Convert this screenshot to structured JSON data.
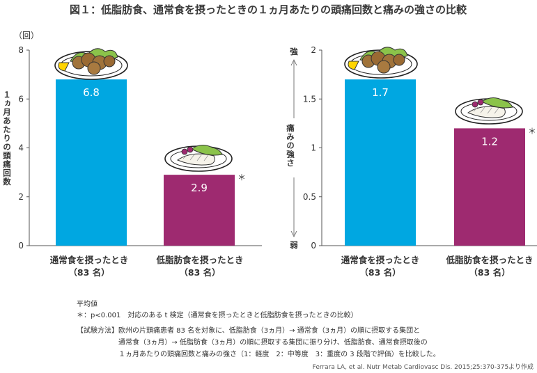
{
  "title": "図１：低脂肪食、通常食を摂ったときの１ヵ月あたりの頭痛回数と痛みの強さの比較",
  "colors": {
    "normal": "#00a7e1",
    "lowfat": "#9e2a70",
    "axis": "#555555"
  },
  "chart_data": [
    {
      "type": "bar",
      "unit_label": "（回）",
      "ylabel": "１ヵ月あたりの頭痛回数",
      "ylim": [
        0,
        8
      ],
      "yticks": [
        0,
        2,
        4,
        6,
        8
      ],
      "categories": [
        {
          "line1": "通常食を摂ったとき",
          "line2": "（83 名）"
        },
        {
          "line1": "低脂肪食を摂ったとき",
          "line2": "（83 名）"
        }
      ],
      "values": [
        6.8,
        2.9
      ],
      "value_labels": [
        "6.8",
        "2.9"
      ],
      "significance": [
        "",
        "＊"
      ]
    },
    {
      "type": "bar",
      "ylabel_top": "強",
      "ylabel_mid": "痛みの強さ",
      "ylabel_bottom": "弱",
      "ylim": [
        0,
        2
      ],
      "yticks": [
        0,
        0.5,
        1,
        1.5,
        2
      ],
      "ytick_labels": [
        "0",
        "0.5",
        "1",
        "1.5",
        "2"
      ],
      "categories": [
        {
          "line1": "通常食を摂ったとき",
          "line2": "（83 名）"
        },
        {
          "line1": "低脂肪食を摂ったとき",
          "line2": "（83 名）"
        }
      ],
      "values": [
        1.7,
        1.2
      ],
      "value_labels": [
        "1.7",
        "1.2"
      ],
      "significance": [
        "",
        "＊"
      ]
    }
  ],
  "notes": {
    "mean": "平均値",
    "stat": "＊：p<0.001　対応のある t 検定（通常食を摂ったときと低脂肪食を摂ったときの比較）",
    "method_label": "【試験方法】",
    "method_lines": [
      "欧州の片頭痛患者 83 名を対象に、低脂肪食（3ヵ月）→ 通常食（3ヵ月）の順に摂取する集団と",
      "通常食（3ヵ月）→ 低脂肪食（3ヵ月）の順に摂取する集団に振り分け、低脂肪食、通常食摂取後の",
      "１ヵ月あたりの頭痛回数と痛みの強さ（1：軽度　2：中等度　3：重度の 3 段階で評価）を比較した。"
    ],
    "source": "Ferrara LA, et al. Nutr Metab Cardiovasc Dis. 2015;25:370-375より作成"
  }
}
